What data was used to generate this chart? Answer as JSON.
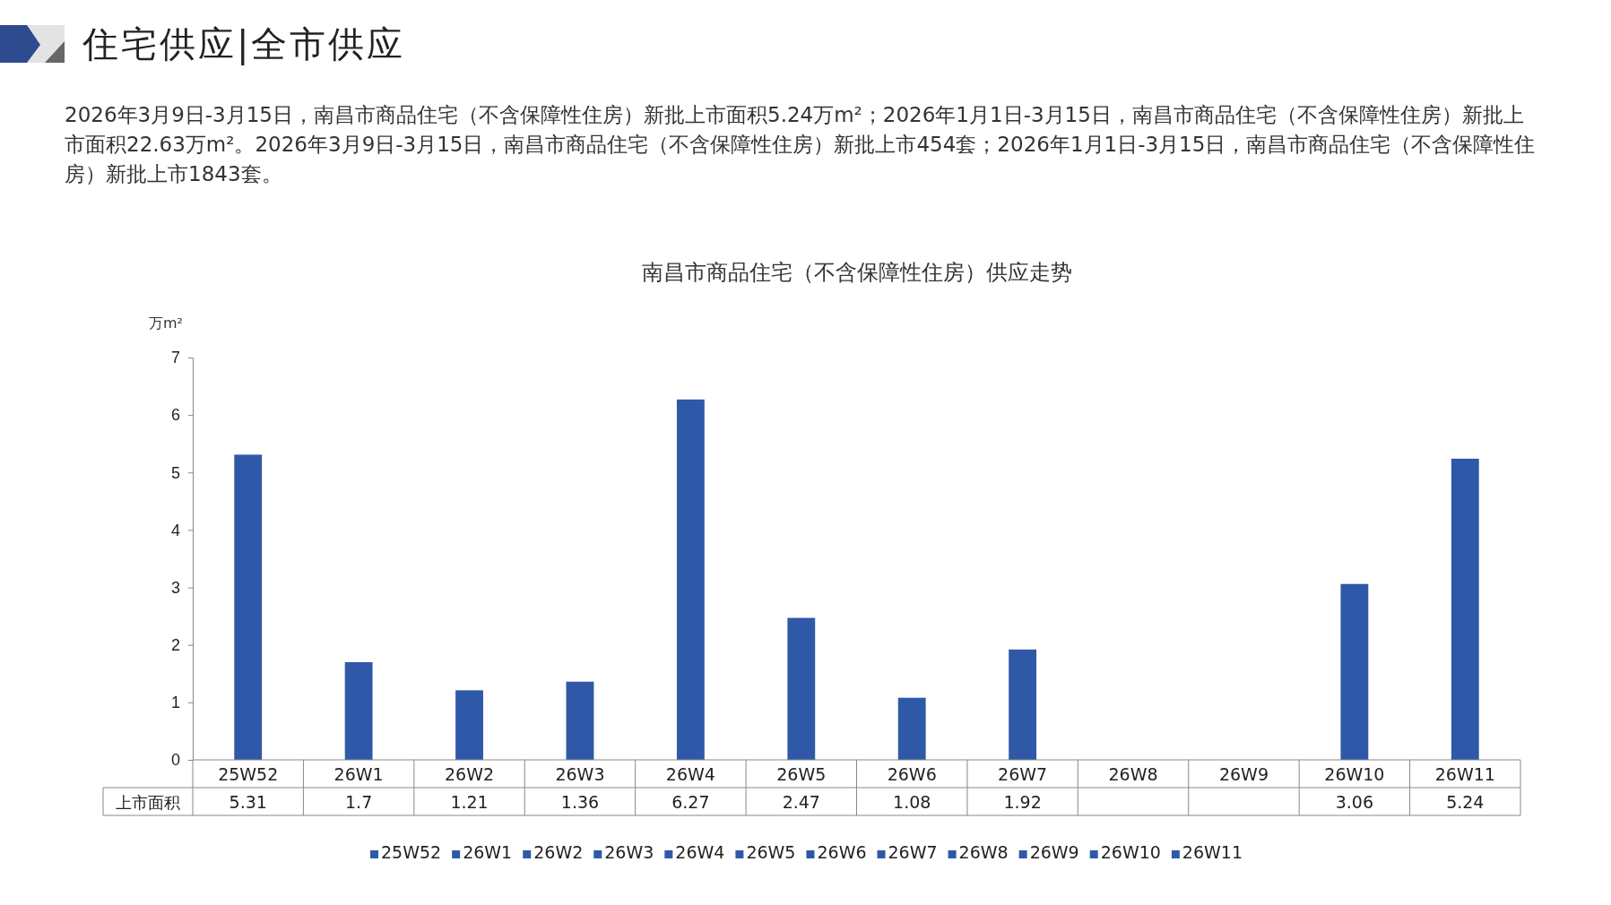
{
  "chart_data": {
    "type": "bar",
    "title": "南昌市商品住宅（不含保障性住房）供应走势",
    "ylabel": "万m²",
    "annotations": [
      "住宅供应|全市供应",
      "2026年3月9日-3月15日，南昌市商品住宅（不含保障性住房）新批上市面积5.24万m²；2026年1月1日-3月15日，南昌市商品住宅（不含保障性住房）新批上市面积22.63万m²。2026年3月9日-3月15日，南昌市商品住宅（不含保障性住房）新批上市454套；2026年1月1日-3月15日，南昌市商品住宅（不含保障性住房）新批上市1843套。"
    ],
    "categories": [
      "25W52",
      "26W1",
      "26W2",
      "26W3",
      "26W4",
      "26W5",
      "26W6",
      "26W7",
      "26W8",
      "26W9",
      "26W10",
      "26W11"
    ],
    "series": [
      {
        "name": "上市面积",
        "color": "#2f59a8",
        "values": [
          5.31,
          1.7,
          1.21,
          1.36,
          6.27,
          2.47,
          1.08,
          1.92,
          null,
          null,
          3.06,
          5.24
        ]
      }
    ],
    "ylim": [
      0,
      7
    ],
    "yticks": [
      0,
      1,
      2,
      3,
      4,
      5,
      6,
      7
    ],
    "data_labels": true,
    "legend": "bottom",
    "grid": false
  }
}
